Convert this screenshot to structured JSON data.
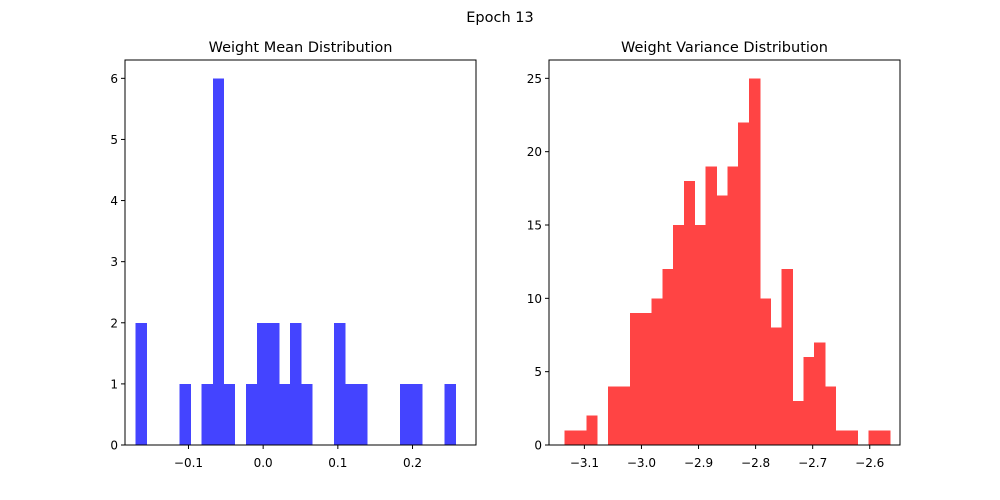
{
  "suptitle": "Epoch 13",
  "chart_data": [
    {
      "type": "bar",
      "title": "Weight Mean Distribution",
      "xlabel": "",
      "ylabel": "",
      "color": "#4444ff",
      "bin_width": 0.0147,
      "xlim": [
        -0.185,
        0.285
      ],
      "ylim": [
        0,
        6.3
      ],
      "xticks": [
        -0.1,
        0.0,
        0.1,
        0.2
      ],
      "xtick_labels": [
        "−0.1",
        "0.0",
        "0.1",
        "0.2"
      ],
      "yticks": [
        0,
        1,
        2,
        3,
        4,
        5,
        6
      ],
      "ytick_labels": [
        "0",
        "1",
        "2",
        "3",
        "4",
        "5",
        "6"
      ],
      "bins": [
        {
          "x": -0.1635,
          "value": 2
        },
        {
          "x": -0.1044,
          "value": 1
        },
        {
          "x": -0.0749,
          "value": 1
        },
        {
          "x": -0.0601,
          "value": 6
        },
        {
          "x": -0.0454,
          "value": 1
        },
        {
          "x": -0.0158,
          "value": 1
        },
        {
          "x": -0.0011,
          "value": 2
        },
        {
          "x": 0.0137,
          "value": 2
        },
        {
          "x": 0.0285,
          "value": 1
        },
        {
          "x": 0.0432,
          "value": 2
        },
        {
          "x": 0.058,
          "value": 1
        },
        {
          "x": 0.1023,
          "value": 2
        },
        {
          "x": 0.1171,
          "value": 1
        },
        {
          "x": 0.1318,
          "value": 1
        },
        {
          "x": 0.1909,
          "value": 1
        },
        {
          "x": 0.2057,
          "value": 1
        },
        {
          "x": 0.25,
          "value": 1
        }
      ]
    },
    {
      "type": "bar",
      "title": "Weight Variance Distribution",
      "xlabel": "",
      "ylabel": "",
      "color": "#ff4444",
      "bin_width": 0.019,
      "xlim": [
        -3.162,
        -2.547
      ],
      "ylim": [
        0,
        26.25
      ],
      "xticks": [
        -3.1,
        -3.0,
        -2.9,
        -2.8,
        -2.7,
        -2.6
      ],
      "xtick_labels": [
        "−3.1",
        "−3.0",
        "−2.9",
        "−2.8",
        "−2.7",
        "−2.6"
      ],
      "yticks": [
        0,
        5,
        10,
        15,
        20,
        25
      ],
      "ytick_labels": [
        "0",
        "5",
        "10",
        "15",
        "20",
        "25"
      ],
      "bins": [
        {
          "x": -3.125,
          "value": 1
        },
        {
          "x": -3.106,
          "value": 1
        },
        {
          "x": -3.087,
          "value": 2
        },
        {
          "x": -3.049,
          "value": 4
        },
        {
          "x": -3.03,
          "value": 4
        },
        {
          "x": -3.011,
          "value": 9
        },
        {
          "x": -2.992,
          "value": 9
        },
        {
          "x": -2.973,
          "value": 10
        },
        {
          "x": -2.954,
          "value": 12
        },
        {
          "x": -2.935,
          "value": 15
        },
        {
          "x": -2.916,
          "value": 18
        },
        {
          "x": -2.897,
          "value": 15
        },
        {
          "x": -2.878,
          "value": 19
        },
        {
          "x": -2.859,
          "value": 17
        },
        {
          "x": -2.84,
          "value": 19
        },
        {
          "x": -2.821,
          "value": 22
        },
        {
          "x": -2.802,
          "value": 25
        },
        {
          "x": -2.783,
          "value": 10
        },
        {
          "x": -2.764,
          "value": 8
        },
        {
          "x": -2.745,
          "value": 12
        },
        {
          "x": -2.726,
          "value": 3
        },
        {
          "x": -2.707,
          "value": 6
        },
        {
          "x": -2.688,
          "value": 7
        },
        {
          "x": -2.669,
          "value": 4
        },
        {
          "x": -2.65,
          "value": 1
        },
        {
          "x": -2.631,
          "value": 1
        },
        {
          "x": -2.593,
          "value": 1
        },
        {
          "x": -2.574,
          "value": 1
        }
      ]
    }
  ]
}
